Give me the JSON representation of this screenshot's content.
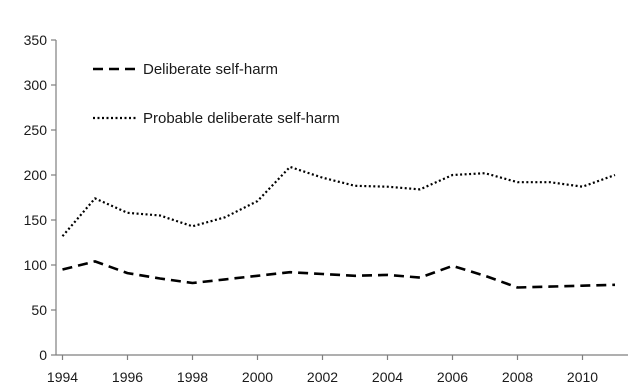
{
  "chart_data": {
    "type": "line",
    "title": "",
    "xlabel": "",
    "ylabel": "",
    "x": [
      1994,
      1995,
      1996,
      1997,
      1998,
      1999,
      2000,
      2001,
      2002,
      2003,
      2004,
      2005,
      2006,
      2007,
      2008,
      2009,
      2010,
      2011
    ],
    "xlim": [
      1993.8,
      2011.4
    ],
    "ylim": [
      0,
      350
    ],
    "yticks": [
      0,
      50,
      100,
      150,
      200,
      250,
      300,
      350
    ],
    "xticks": [
      1994,
      1996,
      1998,
      2000,
      2002,
      2004,
      2006,
      2008,
      2010
    ],
    "grid": false,
    "legend_position": "top-left",
    "series": [
      {
        "name": "Deliberate self-harm",
        "style": "dashed",
        "color": "#000000",
        "values": [
          95,
          104,
          91,
          85,
          80,
          84,
          88,
          92,
          90,
          88,
          89,
          86,
          99,
          88,
          75,
          76,
          77,
          78
        ]
      },
      {
        "name": "Probable deliberate self-harm",
        "style": "dotted",
        "color": "#000000",
        "values": [
          132,
          174,
          158,
          155,
          143,
          153,
          171,
          209,
          197,
          188,
          187,
          184,
          200,
          202,
          192,
          192,
          187,
          200
        ]
      }
    ]
  }
}
